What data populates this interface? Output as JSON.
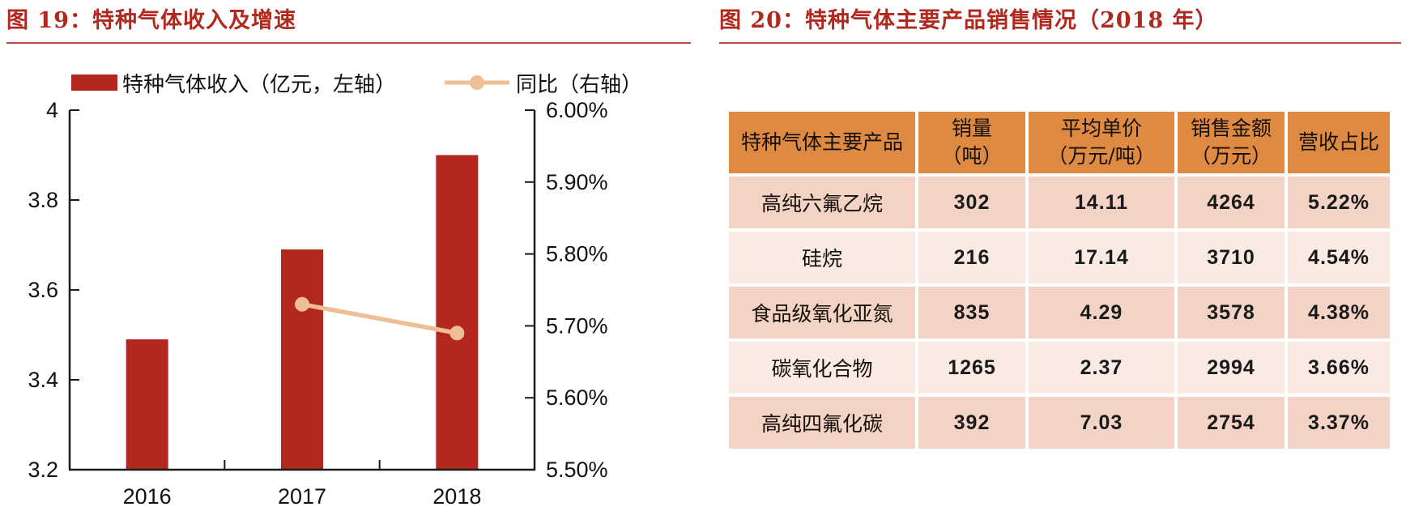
{
  "colors": {
    "title_red": "#B0281E",
    "rule_red": "#BC4B3C",
    "bar_red": "#B3271E",
    "line_peach": "#EEBE95",
    "header_orange": "#DE8A43",
    "row_dark": "#F2D3C5",
    "row_light": "#FAEAE4",
    "axis_black": "#1A1A1A"
  },
  "panels": {
    "left": {
      "title": "图 19：特种气体收入及增速",
      "legend": [
        {
          "label": "特种气体收入（亿元，左轴）",
          "type": "bar"
        },
        {
          "label": "同比（右轴）",
          "type": "line"
        }
      ]
    },
    "right": {
      "title": "图 20：特种气体主要产品销售情况（2018 年）"
    }
  },
  "chart_data": {
    "type": "bar",
    "title": "特种气体收入及增速",
    "categories": [
      "2016",
      "2017",
      "2018"
    ],
    "series": [
      {
        "name": "特种气体收入（亿元，左轴）",
        "type": "bar",
        "axis": "left",
        "values": [
          3.49,
          3.69,
          3.9
        ]
      },
      {
        "name": "同比（右轴）",
        "type": "line",
        "axis": "right",
        "unit": "%",
        "values": [
          null,
          5.73,
          5.69
        ]
      }
    ],
    "left_axis": {
      "min": 3.2,
      "max": 4.0,
      "tick_labels_top_to_bottom": [
        "4",
        "3.8",
        "3.6",
        "3.4",
        "3.2"
      ]
    },
    "right_axis": {
      "min": 5.5,
      "max": 6.0,
      "tick_labels_top_to_bottom": [
        "6.00%",
        "5.90%",
        "5.80%",
        "5.70%",
        "5.60%",
        "5.50%"
      ]
    },
    "grid": false,
    "legend_position": "top"
  },
  "table": {
    "headers": [
      "特种气体主要产品",
      "销量\n（吨）",
      "平均单价\n（万元/吨）",
      "销售金额\n（万元）",
      "营收占比"
    ],
    "rows": [
      [
        "高纯六氟乙烷",
        "302",
        "14.11",
        "4264",
        "5.22%"
      ],
      [
        "硅烷",
        "216",
        "17.14",
        "3710",
        "4.54%"
      ],
      [
        "食品级氧化亚氮",
        "835",
        "4.29",
        "3578",
        "4.38%"
      ],
      [
        "碳氧化合物",
        "1265",
        "2.37",
        "2994",
        "3.66%"
      ],
      [
        "高纯四氟化碳",
        "392",
        "7.03",
        "2754",
        "3.37%"
      ]
    ]
  }
}
